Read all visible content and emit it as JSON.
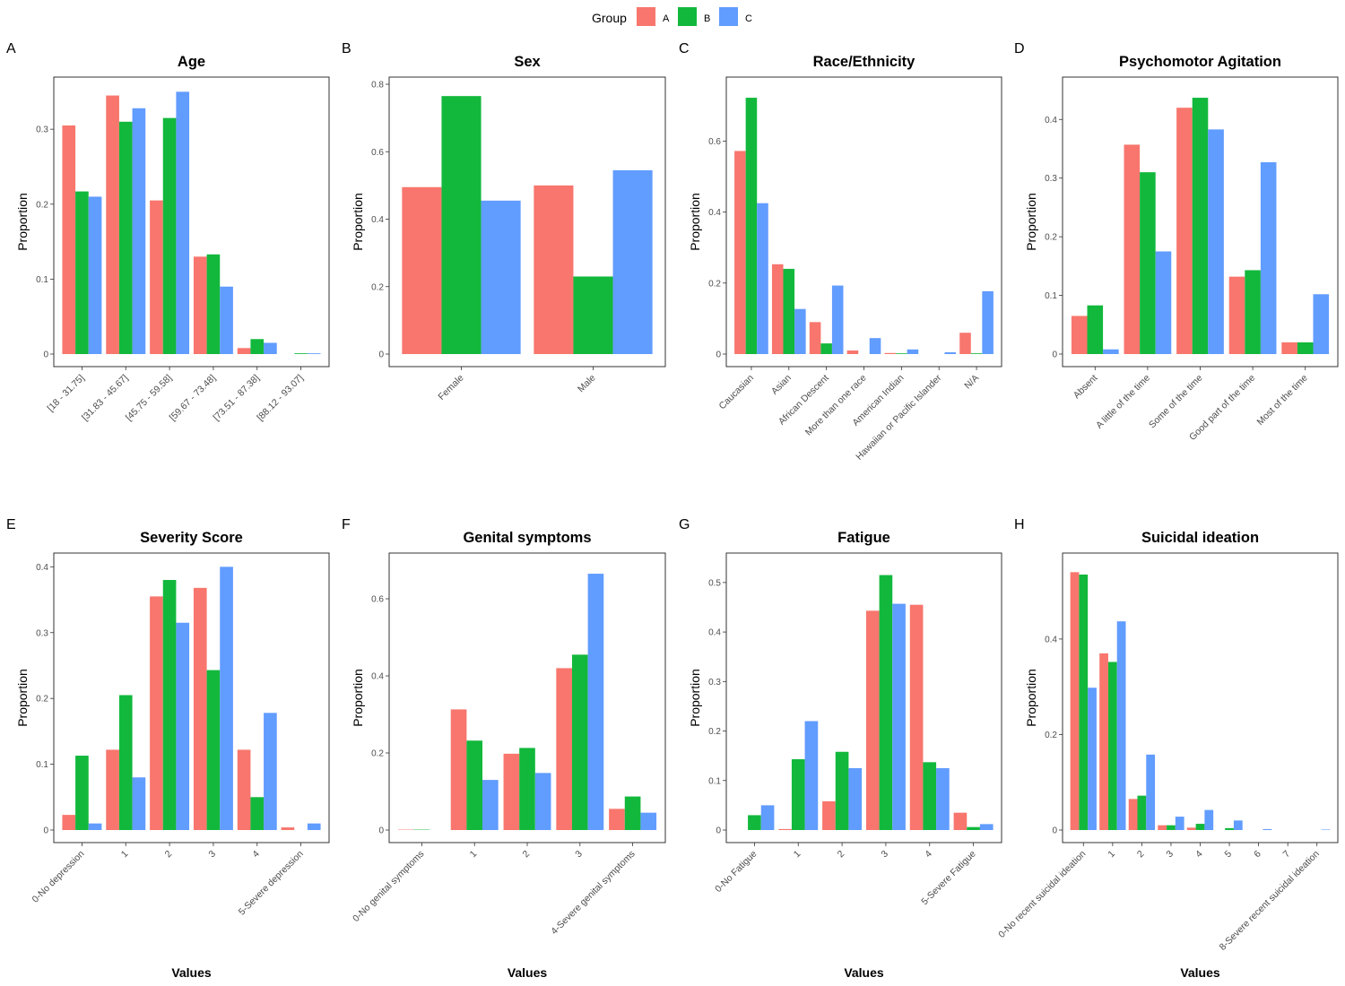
{
  "legend": {
    "title": "Group",
    "entries": [
      {
        "name": "A",
        "color": "#F8766D"
      },
      {
        "name": "B",
        "color": "#12B83C"
      },
      {
        "name": "C",
        "color": "#619CFF"
      }
    ]
  },
  "chart_data": [
    {
      "type": "bar",
      "letter": "A",
      "title": "Age",
      "ylabel": "Proportion",
      "xlabel": "",
      "ylim": [
        0,
        0.36
      ],
      "yticks": [
        0,
        0.1,
        0.2,
        0.3
      ],
      "categories": [
        "[18 - 31.75]",
        "[31.83 - 45.67]",
        "[45.75 - 59.58]",
        "[59.67 - 73.48]",
        "[73.51 - 87.38]",
        "[88.12 - 93.07]"
      ],
      "series": [
        {
          "name": "A",
          "values": [
            0.305,
            0.345,
            0.205,
            0.13,
            0.008,
            0.0
          ]
        },
        {
          "name": "B",
          "values": [
            0.217,
            0.31,
            0.315,
            0.133,
            0.02,
            0.001
          ]
        },
        {
          "name": "C",
          "values": [
            0.21,
            0.328,
            0.35,
            0.09,
            0.015,
            0.001
          ]
        }
      ]
    },
    {
      "type": "bar",
      "letter": "B",
      "title": "Sex",
      "ylabel": "Proportion",
      "xlabel": "",
      "ylim": [
        0,
        0.8
      ],
      "yticks": [
        0,
        0.2,
        0.4,
        0.6,
        0.8
      ],
      "categories": [
        "Female",
        "Male"
      ],
      "series": [
        {
          "name": "A",
          "values": [
            0.495,
            0.5
          ]
        },
        {
          "name": "B",
          "values": [
            0.765,
            0.23
          ]
        },
        {
          "name": "C",
          "values": [
            0.455,
            0.545
          ]
        }
      ]
    },
    {
      "type": "bar",
      "letter": "C",
      "title": "Race/Ethnicity",
      "ylabel": "Proportion",
      "xlabel": "",
      "ylim": [
        0,
        0.76
      ],
      "yticks": [
        0,
        0.2,
        0.4,
        0.6
      ],
      "categories": [
        "Caucasian",
        "Asian",
        "African Descent",
        "More than one race",
        "American Indian",
        "Hawaiian or Pacific Islander",
        "N/A"
      ],
      "series": [
        {
          "name": "A",
          "values": [
            0.572,
            0.253,
            0.09,
            0.01,
            0.003,
            0.0,
            0.06
          ]
        },
        {
          "name": "B",
          "values": [
            0.722,
            0.24,
            0.03,
            0.0,
            0.002,
            0.0,
            0.002
          ]
        },
        {
          "name": "C",
          "values": [
            0.425,
            0.127,
            0.193,
            0.045,
            0.013,
            0.005,
            0.177
          ]
        }
      ]
    },
    {
      "type": "bar",
      "letter": "D",
      "title": "Psychomotor Agitation",
      "ylabel": "Proportion",
      "xlabel": "",
      "ylim": [
        0,
        0.46
      ],
      "yticks": [
        0,
        0.1,
        0.2,
        0.3,
        0.4
      ],
      "categories": [
        "Absent",
        "A little of the time",
        "Some of the time",
        "Good part of the time",
        "Most of the time"
      ],
      "series": [
        {
          "name": "A",
          "values": [
            0.065,
            0.357,
            0.42,
            0.132,
            0.02
          ]
        },
        {
          "name": "B",
          "values": [
            0.083,
            0.31,
            0.437,
            0.143,
            0.02
          ]
        },
        {
          "name": "C",
          "values": [
            0.008,
            0.175,
            0.383,
            0.327,
            0.102
          ]
        }
      ]
    },
    {
      "type": "bar",
      "letter": "E",
      "title": "Severity Score",
      "ylabel": "Proportion",
      "xlabel": "Values",
      "ylim": [
        0,
        0.41
      ],
      "yticks": [
        0,
        0.1,
        0.2,
        0.3,
        0.4
      ],
      "categories": [
        "0-No depression",
        "1",
        "2",
        "3",
        "4",
        "5-Severe depression"
      ],
      "series": [
        {
          "name": "A",
          "values": [
            0.023,
            0.122,
            0.355,
            0.368,
            0.122,
            0.004
          ]
        },
        {
          "name": "B",
          "values": [
            0.113,
            0.205,
            0.38,
            0.243,
            0.05,
            0.0
          ]
        },
        {
          "name": "C",
          "values": [
            0.01,
            0.08,
            0.315,
            0.4,
            0.178,
            0.01
          ]
        }
      ]
    },
    {
      "type": "bar",
      "letter": "F",
      "title": "Genital symptoms",
      "ylabel": "Proportion",
      "xlabel": "Values",
      "ylim": [
        0,
        0.7
      ],
      "yticks": [
        0,
        0.2,
        0.4,
        0.6
      ],
      "categories": [
        "0-No genital symptoms",
        "1",
        "2",
        "3",
        "4-Severe genital symptoms"
      ],
      "series": [
        {
          "name": "A",
          "values": [
            0.001,
            0.313,
            0.198,
            0.42,
            0.055
          ]
        },
        {
          "name": "B",
          "values": [
            0.001,
            0.232,
            0.213,
            0.455,
            0.087
          ]
        },
        {
          "name": "C",
          "values": [
            0.0,
            0.13,
            0.148,
            0.665,
            0.045
          ]
        }
      ]
    },
    {
      "type": "bar",
      "letter": "G",
      "title": "Fatigue",
      "ylabel": "Proportion",
      "xlabel": "Values",
      "ylim": [
        0,
        0.545
      ],
      "yticks": [
        0,
        0.1,
        0.2,
        0.3,
        0.4,
        0.5
      ],
      "categories": [
        "0-No Fatigue",
        "1",
        "2",
        "3",
        "4",
        "5-Severe Fatigue"
      ],
      "series": [
        {
          "name": "A",
          "values": [
            0.0,
            0.002,
            0.058,
            0.443,
            0.455,
            0.035
          ]
        },
        {
          "name": "B",
          "values": [
            0.03,
            0.143,
            0.158,
            0.515,
            0.137,
            0.006
          ]
        },
        {
          "name": "C",
          "values": [
            0.05,
            0.22,
            0.125,
            0.457,
            0.125,
            0.012
          ]
        }
      ]
    },
    {
      "type": "bar",
      "letter": "H",
      "title": "Suicidal ideation",
      "ylabel": "Proportion",
      "xlabel": "Values",
      "ylim": [
        0,
        0.565
      ],
      "yticks": [
        0,
        0.2,
        0.4
      ],
      "categories": [
        "0-No recent suicidal ideation",
        "1",
        "2",
        "3",
        "4",
        "5",
        "6",
        "7",
        "8-Severe recent suicidal ideation"
      ],
      "series": [
        {
          "name": "A",
          "values": [
            0.54,
            0.37,
            0.065,
            0.01,
            0.005,
            0.0,
            0.0,
            0.0,
            0.0
          ]
        },
        {
          "name": "B",
          "values": [
            0.535,
            0.352,
            0.072,
            0.01,
            0.013,
            0.004,
            0.0,
            0.0,
            0.0
          ]
        },
        {
          "name": "C",
          "values": [
            0.298,
            0.437,
            0.158,
            0.028,
            0.042,
            0.02,
            0.002,
            0.0,
            0.001
          ]
        }
      ]
    }
  ]
}
